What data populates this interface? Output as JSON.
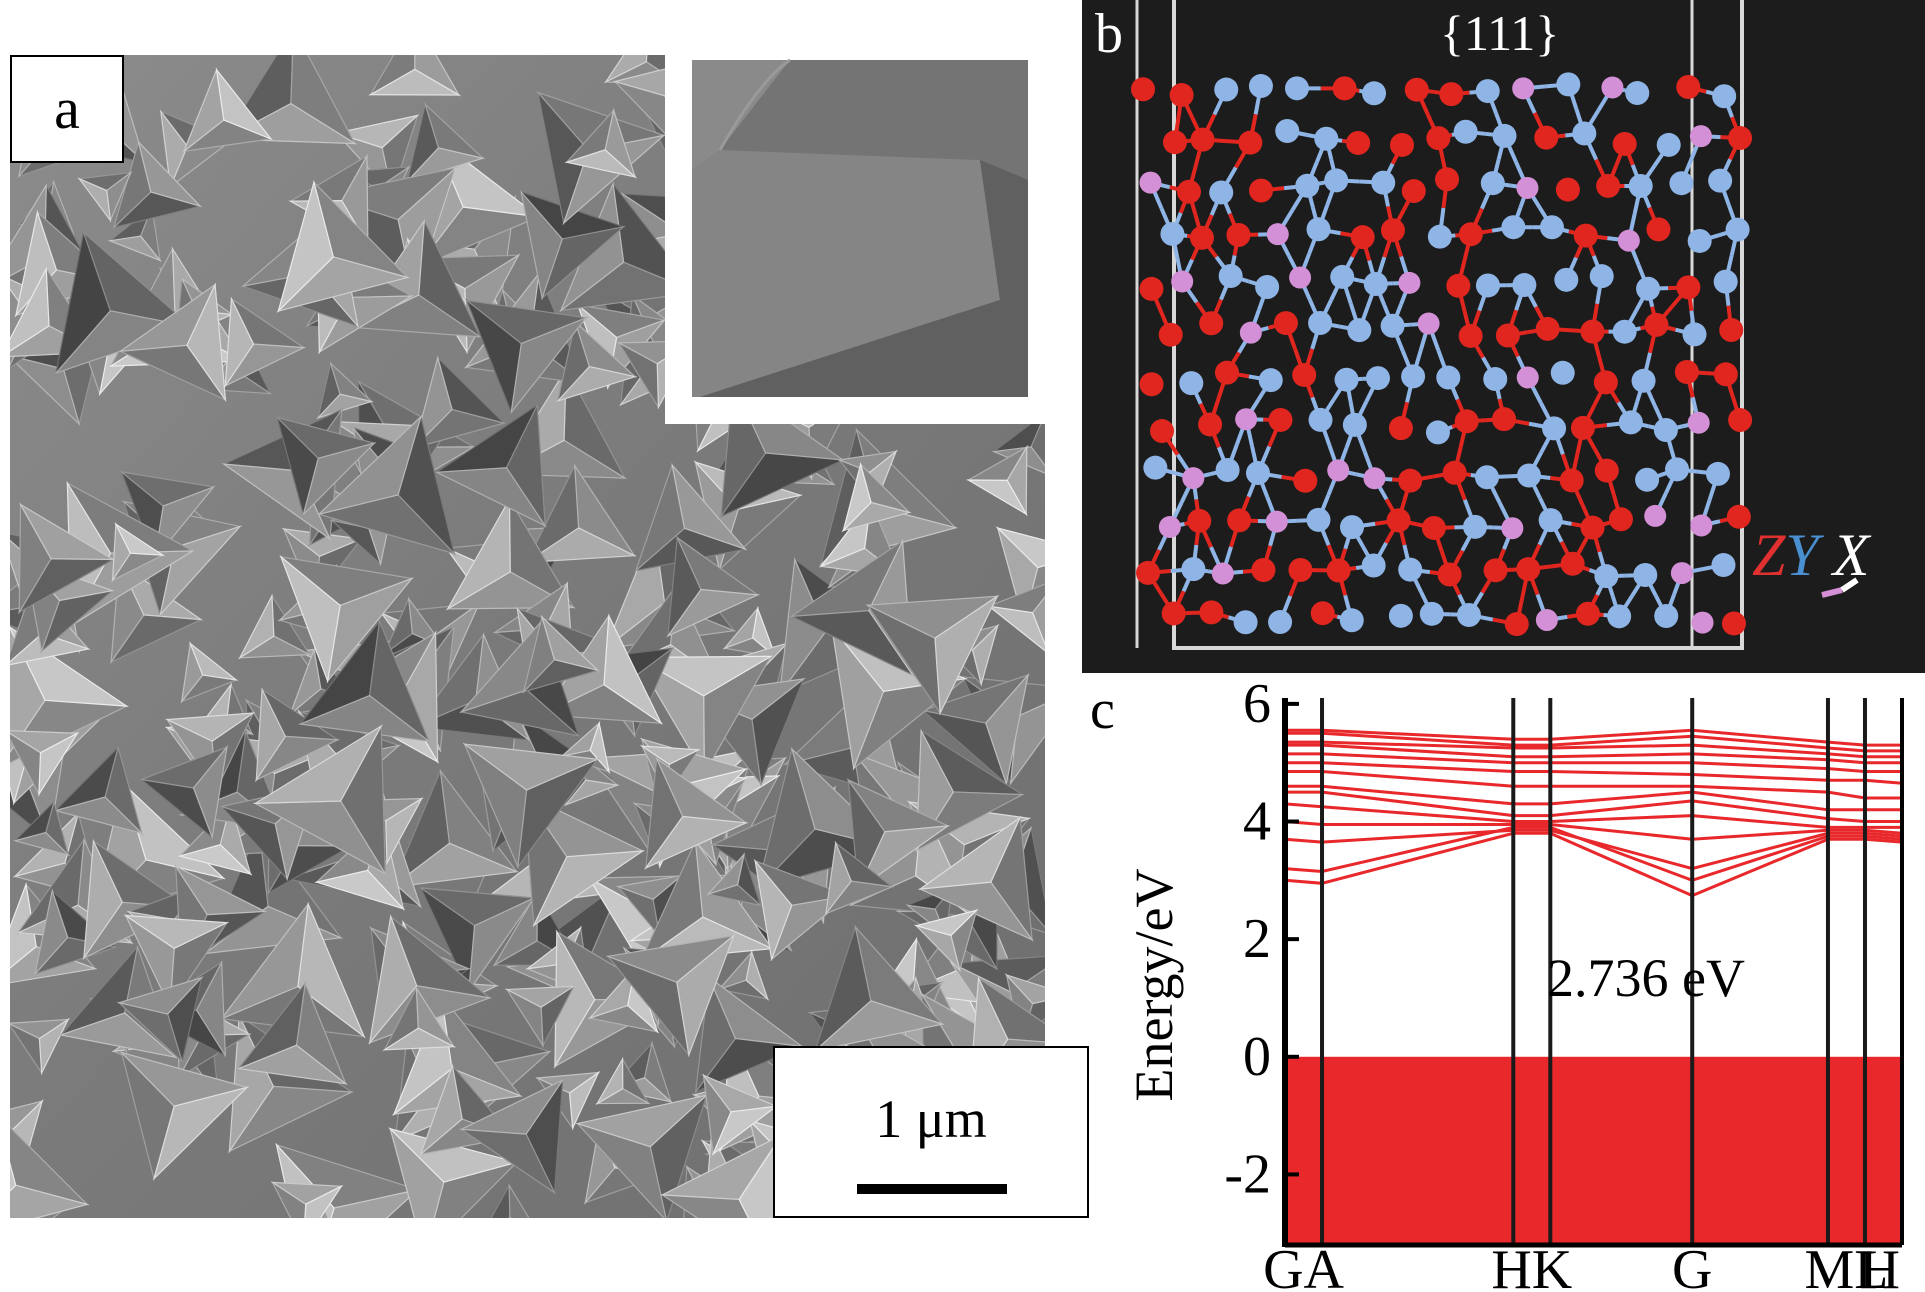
{
  "panel_a": {
    "label": "a",
    "scale_bar_text": "1 μm"
  },
  "panel_b": {
    "label": "b",
    "facet_label": "{111}",
    "axis_z": "Z",
    "axis_y": "Y",
    "axis_x": "X",
    "colors": {
      "background": "#1c1c1c",
      "atom_o": "#e0261e",
      "atom_n": "#8fb5e6",
      "atom_al": "#d490d6"
    }
  },
  "panel_c": {
    "label": "c",
    "gap_annotation": "2.736 eV"
  },
  "chart_data": {
    "type": "line",
    "title": "",
    "xlabel": "",
    "ylabel": "Energy/eV",
    "ylim": [
      -3.2,
      6.1
    ],
    "yticks": [
      6,
      4,
      2,
      0,
      -2
    ],
    "ytick_labels": [
      "6",
      "4",
      "2",
      "0",
      "-2"
    ],
    "x_points": [
      0,
      0.06,
      0.37,
      0.43,
      0.66,
      0.88,
      0.94,
      1.0
    ],
    "x_labels": [
      "GA",
      "HK",
      "G",
      "ML",
      "H"
    ],
    "band_gap_ev": 2.736,
    "valence_band_top_ev": 0.0,
    "colors": {
      "bands": "#e8282b",
      "symmetry_lines": "#1a1a1a"
    },
    "conduction_bands": [
      {
        "values": [
          3.0,
          2.95,
          3.8,
          3.8,
          2.74,
          3.7,
          3.7,
          3.65
        ]
      },
      {
        "values": [
          3.2,
          3.15,
          3.9,
          3.9,
          3.0,
          3.75,
          3.75,
          3.7
        ]
      },
      {
        "values": [
          3.7,
          3.65,
          3.85,
          3.85,
          3.2,
          3.8,
          3.8,
          3.75
        ]
      },
      {
        "values": [
          4.0,
          3.95,
          3.95,
          3.95,
          3.7,
          3.85,
          3.85,
          3.8
        ]
      },
      {
        "values": [
          4.3,
          4.25,
          4.0,
          4.0,
          4.1,
          3.9,
          3.9,
          3.9
        ]
      },
      {
        "values": [
          4.5,
          4.5,
          4.1,
          4.1,
          4.35,
          4.05,
          4.0,
          4.0
        ]
      },
      {
        "values": [
          4.6,
          4.6,
          4.3,
          4.3,
          4.5,
          4.2,
          4.2,
          4.2
        ]
      },
      {
        "values": [
          4.85,
          4.85,
          4.6,
          4.6,
          4.6,
          4.5,
          4.4,
          4.4
        ]
      },
      {
        "values": [
          5.0,
          5.0,
          4.85,
          4.85,
          4.8,
          4.7,
          4.7,
          4.65
        ]
      },
      {
        "values": [
          5.15,
          5.15,
          5.0,
          5.0,
          5.0,
          4.9,
          4.85,
          4.85
        ]
      },
      {
        "values": [
          5.3,
          5.3,
          5.1,
          5.1,
          5.15,
          5.05,
          5.0,
          5.0
        ]
      },
      {
        "values": [
          5.35,
          5.35,
          5.25,
          5.25,
          5.3,
          5.15,
          5.1,
          5.1
        ]
      },
      {
        "values": [
          5.5,
          5.5,
          5.3,
          5.3,
          5.45,
          5.25,
          5.2,
          5.2
        ]
      },
      {
        "values": [
          5.55,
          5.55,
          5.4,
          5.4,
          5.55,
          5.35,
          5.3,
          5.3
        ]
      }
    ]
  }
}
